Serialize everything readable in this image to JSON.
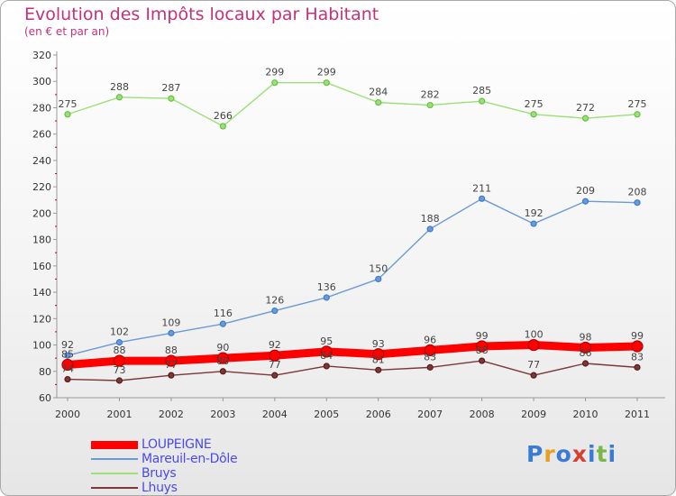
{
  "title": "Evolution des Impôts locaux par Habitant",
  "subtitle": "(en € et par an)",
  "logo": {
    "text": "Proxiti",
    "colors": [
      "#3a7bd5",
      "#e8a020",
      "#3a7bd5",
      "#d64030",
      "#3a7bd5",
      "#7ab648",
      "#3a7bd5"
    ]
  },
  "chart_data": {
    "type": "line",
    "x": [
      "2000",
      "2001",
      "2002",
      "2003",
      "2004",
      "2005",
      "2006",
      "2007",
      "2008",
      "2009",
      "2010",
      "2011"
    ],
    "ylim": [
      60,
      320
    ],
    "yticks": [
      60,
      80,
      100,
      120,
      140,
      160,
      180,
      200,
      220,
      240,
      260,
      280,
      300,
      320
    ],
    "grid": false,
    "legend_position": "bottom-left",
    "series": [
      {
        "name": "LOUPEIGNE",
        "color": "#ff0000",
        "marker": "#b00000",
        "width": 9,
        "radius": 6,
        "values": [
          85,
          88,
          88,
          90,
          92,
          95,
          93,
          96,
          99,
          100,
          98,
          99
        ]
      },
      {
        "name": "Mareuil-en-Dôle",
        "color": "#6b9bd2",
        "marker": "#3a7bd5",
        "width": 1.4,
        "radius": 3,
        "values": [
          92,
          102,
          109,
          116,
          126,
          136,
          150,
          188,
          211,
          192,
          209,
          208
        ]
      },
      {
        "name": "Bruys",
        "color": "#9be07a",
        "marker": "#68c040",
        "width": 1.4,
        "radius": 3,
        "values": [
          275,
          288,
          287,
          266,
          299,
          299,
          284,
          282,
          285,
          275,
          272,
          275
        ]
      },
      {
        "name": "Lhuys",
        "color": "#7a3838",
        "marker": "#5a1a1a",
        "width": 1.4,
        "radius": 3,
        "values": [
          74,
          73,
          77,
          80,
          77,
          84,
          81,
          83,
          88,
          77,
          86,
          83
        ]
      }
    ]
  }
}
